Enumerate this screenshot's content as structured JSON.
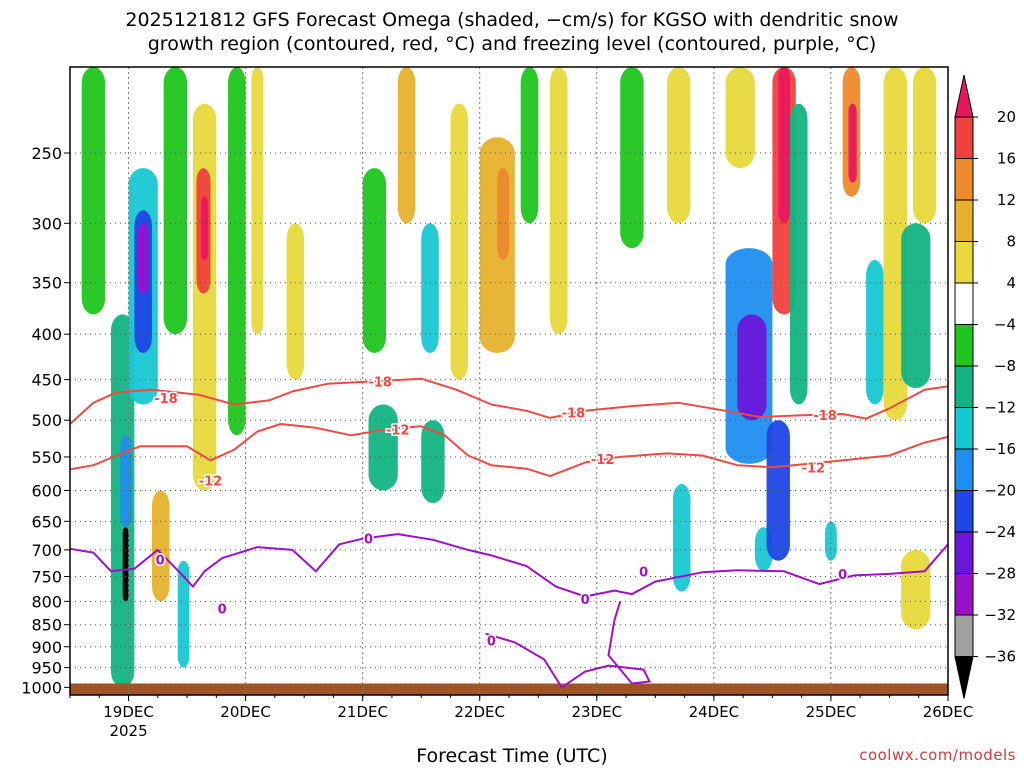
{
  "title_line1": "2025121812 GFS Forecast Omega (shaded, −cm/s) for KGSO with dendritic snow",
  "title_line2": "growth region (contoured, red, °C) and freezing level (contoured, purple, °C)",
  "xlabel": "Forecast Time (UTC)",
  "credit": "coolwx.com/models",
  "chart_data": {
    "type": "heatmap",
    "title": "2025121812 GFS Forecast Omega (shaded, −cm/s) for KGSO with dendritic snow growth region (contoured, red, °C) and freezing level (contoured, purple, °C)",
    "xlabel": "Forecast Time (UTC)",
    "ylabel": "",
    "x_ticks": [
      {
        "label": "19DEC",
        "sub": "2025",
        "day": 19
      },
      {
        "label": "20DEC",
        "sub": "",
        "day": 20
      },
      {
        "label": "21DEC",
        "sub": "",
        "day": 21
      },
      {
        "label": "22DEC",
        "sub": "",
        "day": 22
      },
      {
        "label": "23DEC",
        "sub": "",
        "day": 23
      },
      {
        "label": "24DEC",
        "sub": "",
        "day": 24
      },
      {
        "label": "25DEC",
        "sub": "",
        "day": 25
      },
      {
        "label": "26DEC",
        "sub": "",
        "day": 26
      }
    ],
    "xlim_days": [
      18.5,
      26.0
    ],
    "y_ticks": [
      250,
      300,
      350,
      400,
      450,
      500,
      550,
      600,
      650,
      700,
      750,
      800,
      850,
      900,
      950,
      1000
    ],
    "ylim_hpa": [
      200,
      1020
    ],
    "y_scale": "log-pressure",
    "grid": "dotted",
    "colorbar": {
      "labels": [
        "20",
        "16",
        "12",
        "8",
        "4",
        "−4",
        "−8",
        "−12",
        "−16",
        "−20",
        "−24",
        "−28",
        "−32",
        "−36"
      ],
      "colors": [
        "#e8175d",
        "#f0413d",
        "#ee8a2c",
        "#e6b22e",
        "#e8d93c",
        "#ffffff",
        "#20c51e",
        "#12b483",
        "#18c7d2",
        "#1e8ff0",
        "#1f46e6",
        "#6a17d9",
        "#9a10c9",
        "#a0a0a0",
        "#000000"
      ]
    },
    "contours": [
      {
        "name": "dendritic growth −18",
        "color": "#ee4a45",
        "label": "-18",
        "pressure_by_day": [
          [
            18.5,
            505
          ],
          [
            18.7,
            478
          ],
          [
            18.9,
            465
          ],
          [
            19.2,
            462
          ],
          [
            19.6,
            468
          ],
          [
            19.9,
            480
          ],
          [
            20.2,
            475
          ],
          [
            20.4,
            464
          ],
          [
            20.7,
            455
          ],
          [
            21.1,
            452
          ],
          [
            21.5,
            449
          ],
          [
            21.8,
            462
          ],
          [
            22.1,
            480
          ],
          [
            22.4,
            488
          ],
          [
            22.6,
            497
          ],
          [
            22.9,
            488
          ],
          [
            23.3,
            482
          ],
          [
            23.7,
            478
          ],
          [
            24.1,
            488
          ],
          [
            24.4,
            496
          ],
          [
            24.7,
            494
          ],
          [
            25.1,
            492
          ],
          [
            25.3,
            498
          ],
          [
            25.5,
            485
          ],
          [
            25.8,
            462
          ],
          [
            26.0,
            458
          ]
        ]
      },
      {
        "name": "dendritic growth −12",
        "color": "#ee4a45",
        "label": "-12",
        "pressure_by_day": [
          [
            18.5,
            568
          ],
          [
            18.7,
            562
          ],
          [
            18.9,
            548
          ],
          [
            19.1,
            535
          ],
          [
            19.5,
            535
          ],
          [
            19.7,
            555
          ],
          [
            19.9,
            540
          ],
          [
            20.1,
            515
          ],
          [
            20.3,
            505
          ],
          [
            20.6,
            510
          ],
          [
            20.9,
            520
          ],
          [
            21.2,
            512
          ],
          [
            21.5,
            508
          ],
          [
            21.7,
            520
          ],
          [
            21.9,
            548
          ],
          [
            22.1,
            562
          ],
          [
            22.4,
            567
          ],
          [
            22.6,
            578
          ],
          [
            22.9,
            558
          ],
          [
            23.2,
            550
          ],
          [
            23.6,
            545
          ],
          [
            23.9,
            548
          ],
          [
            24.2,
            562
          ],
          [
            24.5,
            565
          ],
          [
            24.8,
            560
          ],
          [
            25.1,
            555
          ],
          [
            25.5,
            548
          ],
          [
            25.8,
            530
          ],
          [
            26.0,
            522
          ]
        ]
      },
      {
        "name": "freezing level 0",
        "color": "#a010c8",
        "label": "0",
        "pressure_by_day": [
          [
            18.5,
            698
          ],
          [
            18.7,
            705
          ],
          [
            18.85,
            740
          ],
          [
            19.05,
            735
          ],
          [
            19.25,
            700
          ],
          [
            19.45,
            745
          ],
          [
            19.55,
            770
          ],
          [
            19.65,
            740
          ],
          [
            19.8,
            715
          ],
          [
            20.1,
            695
          ],
          [
            20.4,
            700
          ],
          [
            20.6,
            740
          ],
          [
            20.8,
            690
          ],
          [
            21.0,
            680
          ],
          [
            21.3,
            672
          ],
          [
            21.6,
            682
          ],
          [
            21.9,
            700
          ],
          [
            22.1,
            710
          ],
          [
            22.4,
            730
          ],
          [
            22.65,
            770
          ],
          [
            22.9,
            790
          ],
          [
            23.15,
            778
          ],
          [
            23.3,
            785
          ],
          [
            23.5,
            760
          ],
          [
            23.9,
            742
          ],
          [
            24.2,
            738
          ],
          [
            24.6,
            740
          ],
          [
            24.9,
            765
          ],
          [
            25.2,
            748
          ],
          [
            25.5,
            745
          ],
          [
            25.8,
            740
          ],
          [
            26.0,
            690
          ]
        ]
      }
    ],
    "contour_labels": [
      {
        "text": "-18",
        "day": 19.32,
        "p": 472
      },
      {
        "text": "-18",
        "day": 21.15,
        "p": 452
      },
      {
        "text": "-18",
        "day": 22.8,
        "p": 490
      },
      {
        "text": "-18",
        "day": 24.95,
        "p": 493
      },
      {
        "text": "-12",
        "day": 19.7,
        "p": 585
      },
      {
        "text": "-12",
        "day": 21.3,
        "p": 512
      },
      {
        "text": "-12",
        "day": 23.05,
        "p": 553
      },
      {
        "text": "-12",
        "day": 24.85,
        "p": 565
      },
      {
        "text": "0",
        "day": 19.27,
        "p": 718
      },
      {
        "text": "0",
        "day": 19.8,
        "p": 815
      },
      {
        "text": "0",
        "day": 21.05,
        "p": 680
      },
      {
        "text": "0",
        "day": 22.9,
        "p": 795
      },
      {
        "text": "0",
        "day": 22.1,
        "p": 885
      },
      {
        "text": "0",
        "day": 23.4,
        "p": 740
      },
      {
        "text": "0",
        "day": 25.1,
        "p": 745
      }
    ],
    "omega_cells": [
      {
        "d0": 18.85,
        "d1": 19.05,
        "p0": 380,
        "p1": 1000,
        "v": -10
      },
      {
        "d0": 19.0,
        "d1": 19.25,
        "p0": 260,
        "p1": 480,
        "v": -14
      },
      {
        "d0": 19.05,
        "d1": 19.2,
        "p0": 290,
        "p1": 420,
        "v": -22
      },
      {
        "d0": 19.08,
        "d1": 19.17,
        "p0": 300,
        "p1": 360,
        "v": -30
      },
      {
        "d0": 18.93,
        "d1": 19.03,
        "p0": 520,
        "p1": 660,
        "v": -18
      },
      {
        "d0": 18.95,
        "d1": 19.0,
        "p0": 660,
        "p1": 800,
        "v": -36
      },
      {
        "d0": 18.6,
        "d1": 18.8,
        "p0": 200,
        "p1": 380,
        "v": -6
      },
      {
        "d0": 19.3,
        "d1": 19.5,
        "p0": 200,
        "p1": 400,
        "v": -6
      },
      {
        "d0": 19.55,
        "d1": 19.75,
        "p0": 220,
        "p1": 600,
        "v": 5
      },
      {
        "d0": 19.58,
        "d1": 19.7,
        "p0": 260,
        "p1": 360,
        "v": 14
      },
      {
        "d0": 19.62,
        "d1": 19.68,
        "p0": 280,
        "p1": 330,
        "v": 19
      },
      {
        "d0": 19.42,
        "d1": 19.52,
        "p0": 720,
        "p1": 950,
        "v": -14
      },
      {
        "d0": 19.2,
        "d1": 19.35,
        "p0": 600,
        "p1": 800,
        "v": 6
      },
      {
        "d0": 19.85,
        "d1": 20.0,
        "p0": 200,
        "p1": 520,
        "v": -6
      },
      {
        "d0": 20.05,
        "d1": 20.15,
        "p0": 200,
        "p1": 400,
        "v": 5
      },
      {
        "d0": 20.35,
        "d1": 20.5,
        "p0": 300,
        "p1": 450,
        "v": 5
      },
      {
        "d0": 21.0,
        "d1": 21.2,
        "p0": 260,
        "p1": 420,
        "v": -6
      },
      {
        "d0": 21.3,
        "d1": 21.45,
        "p0": 200,
        "p1": 300,
        "v": 6
      },
      {
        "d0": 21.5,
        "d1": 21.65,
        "p0": 300,
        "p1": 420,
        "v": -12
      },
      {
        "d0": 21.05,
        "d1": 21.3,
        "p0": 480,
        "p1": 600,
        "v": -8
      },
      {
        "d0": 21.5,
        "d1": 21.7,
        "p0": 500,
        "p1": 620,
        "v": -8
      },
      {
        "d0": 21.75,
        "d1": 21.9,
        "p0": 220,
        "p1": 450,
        "v": 5
      },
      {
        "d0": 22.0,
        "d1": 22.3,
        "p0": 240,
        "p1": 420,
        "v": 6
      },
      {
        "d0": 22.15,
        "d1": 22.25,
        "p0": 260,
        "p1": 330,
        "v": 11
      },
      {
        "d0": 22.35,
        "d1": 22.5,
        "p0": 200,
        "p1": 300,
        "v": -6
      },
      {
        "d0": 22.6,
        "d1": 22.75,
        "p0": 200,
        "p1": 400,
        "v": 5
      },
      {
        "d0": 23.2,
        "d1": 23.4,
        "p0": 200,
        "p1": 320,
        "v": -6
      },
      {
        "d0": 23.6,
        "d1": 23.8,
        "p0": 200,
        "p1": 300,
        "v": 5
      },
      {
        "d0": 23.65,
        "d1": 23.8,
        "p0": 590,
        "p1": 780,
        "v": -12
      },
      {
        "d0": 24.1,
        "d1": 24.35,
        "p0": 200,
        "p1": 260,
        "v": 5
      },
      {
        "d0": 24.1,
        "d1": 24.5,
        "p0": 320,
        "p1": 560,
        "v": -16
      },
      {
        "d0": 24.2,
        "d1": 24.45,
        "p0": 380,
        "p1": 500,
        "v": -24
      },
      {
        "d0": 24.35,
        "d1": 24.5,
        "p0": 660,
        "p1": 740,
        "v": -12
      },
      {
        "d0": 24.5,
        "d1": 24.7,
        "p0": 200,
        "p1": 380,
        "v": 14
      },
      {
        "d0": 24.55,
        "d1": 24.65,
        "p0": 200,
        "p1": 300,
        "v": 19
      },
      {
        "d0": 24.45,
        "d1": 24.65,
        "p0": 500,
        "p1": 720,
        "v": -20
      },
      {
        "d0": 24.65,
        "d1": 24.8,
        "p0": 220,
        "p1": 480,
        "v": -8
      },
      {
        "d0": 25.1,
        "d1": 25.25,
        "p0": 200,
        "p1": 280,
        "v": 10
      },
      {
        "d0": 25.15,
        "d1": 25.22,
        "p0": 220,
        "p1": 270,
        "v": 19
      },
      {
        "d0": 24.95,
        "d1": 25.05,
        "p0": 650,
        "p1": 720,
        "v": -12
      },
      {
        "d0": 25.3,
        "d1": 25.45,
        "p0": 330,
        "p1": 480,
        "v": -12
      },
      {
        "d0": 25.45,
        "d1": 25.65,
        "p0": 200,
        "p1": 500,
        "v": 5
      },
      {
        "d0": 25.6,
        "d1": 25.85,
        "p0": 300,
        "p1": 460,
        "v": -8
      },
      {
        "d0": 25.7,
        "d1": 25.9,
        "p0": 200,
        "p1": 300,
        "v": 5
      },
      {
        "d0": 25.6,
        "d1": 25.85,
        "p0": 700,
        "p1": 860,
        "v": 5
      }
    ],
    "terrain": {
      "color": "#a05527",
      "p_top": 990
    }
  }
}
